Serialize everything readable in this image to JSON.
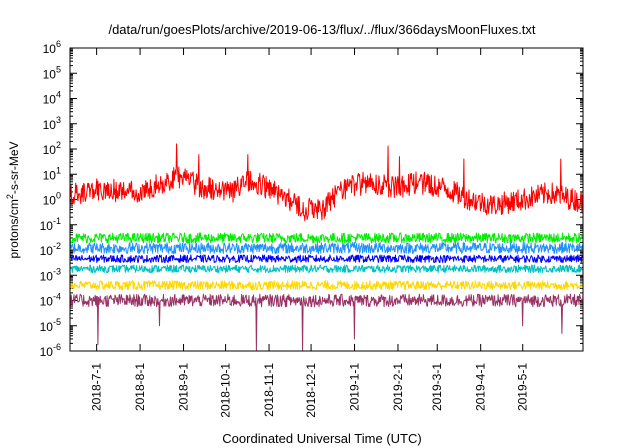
{
  "chart_data": {
    "type": "line",
    "title": "/data/run/goesPlots/archive/2019-06-13/flux/../flux/366daysMoonFluxes.txt",
    "xlabel": "Coordinated Universal Time (UTC)",
    "ylabel": {
      "base": "protons/cm",
      "sup": "2",
      "rest": "-s-sr-MeV"
    },
    "x_scale": "time",
    "x_range": [
      "2018-06-12",
      "2019-06-13"
    ],
    "x_ticks": [
      "2018-7-1",
      "2018-8-1",
      "2018-9-1",
      "2018-10-1",
      "2018-11-1",
      "2018-12-1",
      "2019-1-1",
      "2019-2-1",
      "2019-3-1",
      "2019-4-1",
      "2019-5-1"
    ],
    "y_scale": "log",
    "ylim": [
      1e-06,
      1000000.0
    ],
    "y_ticks": [
      {
        "base": "10",
        "exp": "-6"
      },
      {
        "base": "10",
        "exp": "-5"
      },
      {
        "base": "10",
        "exp": "-4"
      },
      {
        "base": "10",
        "exp": "-3"
      },
      {
        "base": "10",
        "exp": "-2"
      },
      {
        "base": "10",
        "exp": "-1"
      },
      {
        "base": "10",
        "exp": "0"
      },
      {
        "base": "10",
        "exp": "1"
      },
      {
        "base": "10",
        "exp": "2"
      },
      {
        "base": "10",
        "exp": "3"
      },
      {
        "base": "10",
        "exp": "4"
      },
      {
        "base": "10",
        "exp": "5"
      },
      {
        "base": "10",
        "exp": "6"
      }
    ],
    "grid": false,
    "legend": "none",
    "series": [
      {
        "color": "#ff0000",
        "typical": 2.5,
        "spread_decades": 0.45,
        "points": [
          [
            "2018-06-12",
            1.5
          ],
          [
            "2018-07-01",
            2.5
          ],
          [
            "2018-08-01",
            2.0
          ],
          [
            "2018-08-28",
            8.0
          ],
          [
            "2018-09-15",
            3.0
          ],
          [
            "2018-10-05",
            2.0
          ],
          [
            "2018-10-20",
            6.0
          ],
          [
            "2018-11-10",
            1.5
          ],
          [
            "2018-11-25",
            0.4
          ],
          [
            "2018-12-10",
            0.4
          ],
          [
            "2018-12-20",
            2.0
          ],
          [
            "2019-01-10",
            5.0
          ],
          [
            "2019-02-01",
            3.0
          ],
          [
            "2019-02-15",
            5.0
          ],
          [
            "2019-03-05",
            3.0
          ],
          [
            "2019-03-25",
            1.0
          ],
          [
            "2019-04-10",
            0.6
          ],
          [
            "2019-05-01",
            1.0
          ],
          [
            "2019-05-20",
            1.8
          ],
          [
            "2019-06-13",
            0.8
          ]
        ],
        "spikes": [
          [
            "2018-08-27",
            160
          ],
          [
            "2018-09-12",
            60
          ],
          [
            "2018-10-17",
            60
          ],
          [
            "2019-01-25",
            130
          ],
          [
            "2019-02-02",
            50
          ],
          [
            "2019-03-20",
            40
          ],
          [
            "2019-05-28",
            40
          ]
        ]
      },
      {
        "color": "#00ee00",
        "typical": 0.03,
        "spread_decades": 0.2,
        "points": [],
        "spikes": []
      },
      {
        "color": "#1e90ff",
        "typical": 0.012,
        "spread_decades": 0.22,
        "points": [],
        "spikes": []
      },
      {
        "color": "#0000ff",
        "typical": 0.0045,
        "spread_decades": 0.15,
        "points": [],
        "spikes": []
      },
      {
        "color": "#00bfbf",
        "typical": 0.0018,
        "spread_decades": 0.15,
        "points": [],
        "spikes": []
      },
      {
        "color": "#ffd700",
        "typical": 0.0004,
        "spread_decades": 0.18,
        "points": [],
        "spikes": []
      },
      {
        "color": "#993366",
        "typical": 0.0001,
        "spread_decades": 0.25,
        "points": [],
        "spikes": [
          [
            "2018-07-02",
            1.8e-06
          ],
          [
            "2018-08-15",
            1e-05
          ],
          [
            "2018-10-23",
            1e-06
          ],
          [
            "2018-11-25",
            1e-06
          ],
          [
            "2019-01-01",
            3e-06
          ],
          [
            "2019-05-01",
            1e-05
          ],
          [
            "2019-05-29",
            5e-06
          ]
        ]
      }
    ]
  }
}
